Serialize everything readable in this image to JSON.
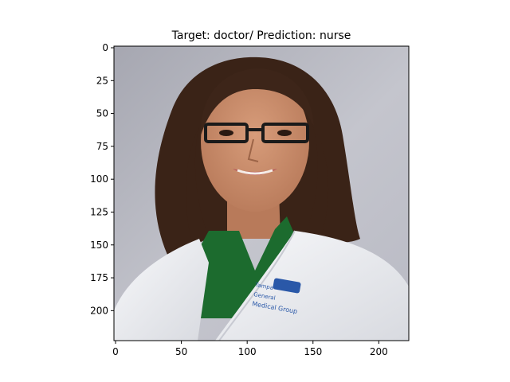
{
  "figure": {
    "title": "Target: doctor/ Prediction: nurse"
  },
  "axes": {
    "x_ticks": [
      "0",
      "50",
      "100",
      "150",
      "200"
    ],
    "y_ticks": [
      "0",
      "25",
      "50",
      "75",
      "100",
      "125",
      "150",
      "175",
      "200"
    ],
    "x_range": [
      0,
      224
    ],
    "y_range": [
      0,
      224
    ]
  },
  "image": {
    "subject": "portrait of a smiling woman with long dark hair and rectangular glasses wearing a white coat over a green shirt",
    "badge_text": "Medical Group",
    "colors": {
      "background_top": "#a9aab4",
      "background_bottom": "#c9cad2",
      "hair": "#3b2418",
      "skin": "#c98d6c",
      "coat": "#f2f3f6",
      "shirt": "#1c6b2e",
      "badge": "#2a58a8"
    }
  }
}
